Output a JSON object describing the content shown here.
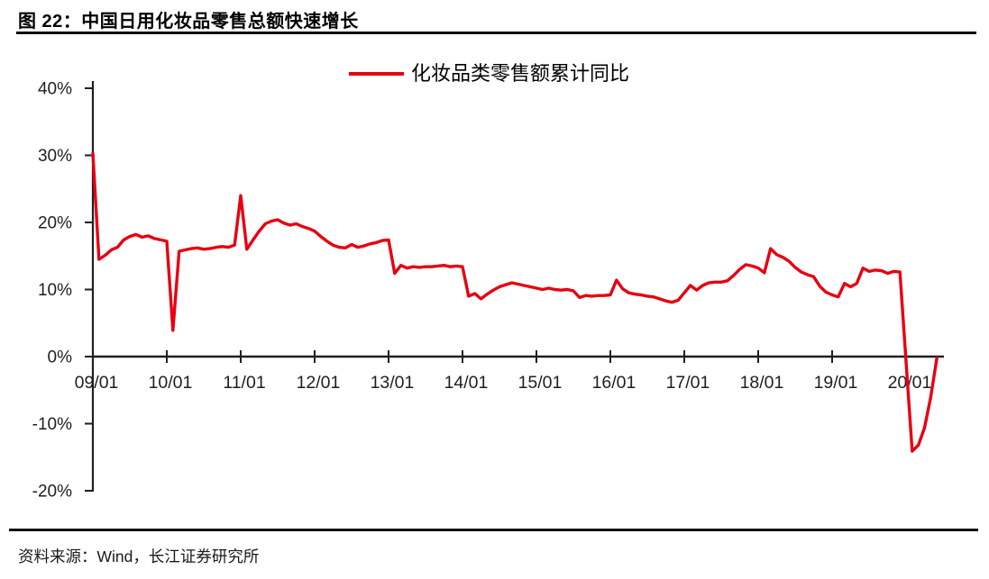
{
  "figure": {
    "title": "图 22：中国日用化妆品零售总额快速增长",
    "source": "资料来源：Wind，长江证券研究所"
  },
  "legend": {
    "label": "化妆品类零售额累计同比",
    "color": "#e60012"
  },
  "colors": {
    "series_red": "#e60012",
    "axis": "#1f1f1f",
    "text": "#1f1f1f"
  },
  "chart_data": {
    "type": "line",
    "title": "图 22：中国日用化妆品零售总额快速增长",
    "xlabel": "",
    "ylabel": "",
    "ylim": [
      -20,
      40
    ],
    "grid": false,
    "legend_position": "top-center",
    "y_ticks": [
      {
        "label": "40%",
        "value": 40
      },
      {
        "label": "30%",
        "value": 30
      },
      {
        "label": "20%",
        "value": 20
      },
      {
        "label": "10%",
        "value": 10
      },
      {
        "label": "0%",
        "value": 0
      },
      {
        "label": "-10%",
        "value": -10
      },
      {
        "label": "-20%",
        "value": -20
      }
    ],
    "x_ticks": [
      "09/01",
      "10/01",
      "11/01",
      "12/01",
      "13/01",
      "14/01",
      "15/01",
      "16/01",
      "17/01",
      "18/01",
      "19/01",
      "20/01"
    ],
    "series": [
      {
        "name": "化妆品类零售额累计同比",
        "color": "#e60012",
        "unit": "%",
        "points": [
          [
            "09/01",
            30.3
          ],
          [
            "09/02",
            14.5
          ],
          [
            "09/03",
            15.1
          ],
          [
            "09/04",
            15.9
          ],
          [
            "09/05",
            16.3
          ],
          [
            "09/06",
            17.4
          ],
          [
            "09/07",
            17.9
          ],
          [
            "09/08",
            18.2
          ],
          [
            "09/09",
            17.8
          ],
          [
            "09/10",
            18.0
          ],
          [
            "09/11",
            17.6
          ],
          [
            "09/12",
            17.4
          ],
          [
            "10/01",
            17.2
          ],
          [
            "10/02",
            3.9
          ],
          [
            "10/03",
            15.7
          ],
          [
            "10/04",
            15.9
          ],
          [
            "10/05",
            16.1
          ],
          [
            "10/06",
            16.2
          ],
          [
            "10/07",
            16.0
          ],
          [
            "10/08",
            16.1
          ],
          [
            "10/09",
            16.3
          ],
          [
            "10/10",
            16.4
          ],
          [
            "10/11",
            16.3
          ],
          [
            "10/12",
            16.6
          ],
          [
            "11/01",
            24.0
          ],
          [
            "11/02",
            16.0
          ],
          [
            "11/03",
            17.4
          ],
          [
            "11/04",
            18.7
          ],
          [
            "11/05",
            19.8
          ],
          [
            "11/06",
            20.2
          ],
          [
            "11/07",
            20.4
          ],
          [
            "11/08",
            19.9
          ],
          [
            "11/09",
            19.6
          ],
          [
            "11/10",
            19.8
          ],
          [
            "11/11",
            19.4
          ],
          [
            "11/12",
            19.1
          ],
          [
            "12/01",
            18.7
          ],
          [
            "12/02",
            17.9
          ],
          [
            "12/03",
            17.2
          ],
          [
            "12/04",
            16.6
          ],
          [
            "12/05",
            16.3
          ],
          [
            "12/06",
            16.2
          ],
          [
            "12/07",
            16.7
          ],
          [
            "12/08",
            16.3
          ],
          [
            "12/09",
            16.5
          ],
          [
            "12/10",
            16.8
          ],
          [
            "12/11",
            17.0
          ],
          [
            "12/12",
            17.3
          ],
          [
            "13/01",
            17.4
          ],
          [
            "13/02",
            12.4
          ],
          [
            "13/03",
            13.6
          ],
          [
            "13/04",
            13.2
          ],
          [
            "13/05",
            13.4
          ],
          [
            "13/06",
            13.3
          ],
          [
            "13/07",
            13.4
          ],
          [
            "13/08",
            13.4
          ],
          [
            "13/09",
            13.5
          ],
          [
            "13/10",
            13.6
          ],
          [
            "13/11",
            13.4
          ],
          [
            "13/12",
            13.5
          ],
          [
            "14/01",
            13.4
          ],
          [
            "14/02",
            9.0
          ],
          [
            "14/03",
            9.4
          ],
          [
            "14/04",
            8.6
          ],
          [
            "14/05",
            9.3
          ],
          [
            "14/06",
            9.9
          ],
          [
            "14/07",
            10.4
          ],
          [
            "14/08",
            10.7
          ],
          [
            "14/09",
            11.0
          ],
          [
            "14/10",
            10.8
          ],
          [
            "14/11",
            10.6
          ],
          [
            "14/12",
            10.4
          ],
          [
            "15/01",
            10.2
          ],
          [
            "15/02",
            10.0
          ],
          [
            "15/03",
            10.2
          ],
          [
            "15/04",
            10.0
          ],
          [
            "15/05",
            9.9
          ],
          [
            "15/06",
            10.0
          ],
          [
            "15/07",
            9.8
          ],
          [
            "15/08",
            8.8
          ],
          [
            "15/09",
            9.1
          ],
          [
            "15/10",
            9.0
          ],
          [
            "15/11",
            9.1
          ],
          [
            "15/12",
            9.1
          ],
          [
            "16/01",
            9.2
          ],
          [
            "16/02",
            11.4
          ],
          [
            "16/03",
            10.1
          ],
          [
            "16/04",
            9.5
          ],
          [
            "16/05",
            9.3
          ],
          [
            "16/06",
            9.2
          ],
          [
            "16/07",
            9.0
          ],
          [
            "16/08",
            8.9
          ],
          [
            "16/09",
            8.6
          ],
          [
            "16/10",
            8.3
          ],
          [
            "16/11",
            8.1
          ],
          [
            "16/12",
            8.4
          ],
          [
            "17/01",
            9.5
          ],
          [
            "17/02",
            10.6
          ],
          [
            "17/03",
            9.9
          ],
          [
            "17/04",
            10.6
          ],
          [
            "17/05",
            11.0
          ],
          [
            "17/06",
            11.1
          ],
          [
            "17/07",
            11.1
          ],
          [
            "17/08",
            11.3
          ],
          [
            "17/09",
            12.1
          ],
          [
            "17/10",
            13.0
          ],
          [
            "17/11",
            13.7
          ],
          [
            "17/12",
            13.5
          ],
          [
            "18/01",
            13.2
          ],
          [
            "18/02",
            12.5
          ],
          [
            "18/03",
            16.1
          ],
          [
            "18/04",
            15.2
          ],
          [
            "18/05",
            14.8
          ],
          [
            "18/06",
            14.2
          ],
          [
            "18/07",
            13.3
          ],
          [
            "18/08",
            12.6
          ],
          [
            "18/09",
            12.2
          ],
          [
            "18/10",
            11.9
          ],
          [
            "18/11",
            10.5
          ],
          [
            "18/12",
            9.6
          ],
          [
            "19/01",
            9.2
          ],
          [
            "19/02",
            8.9
          ],
          [
            "19/03",
            10.9
          ],
          [
            "19/04",
            10.4
          ],
          [
            "19/05",
            10.9
          ],
          [
            "19/06",
            13.2
          ],
          [
            "19/07",
            12.7
          ],
          [
            "19/08",
            12.9
          ],
          [
            "19/09",
            12.8
          ],
          [
            "19/10",
            12.4
          ],
          [
            "19/11",
            12.7
          ],
          [
            "19/12",
            12.6
          ],
          [
            "20/02",
            -14.1
          ],
          [
            "20/03",
            -13.2
          ],
          [
            "20/04",
            -10.6
          ],
          [
            "20/05",
            -6.1
          ],
          [
            "20/06",
            -0.2
          ]
        ]
      }
    ]
  }
}
